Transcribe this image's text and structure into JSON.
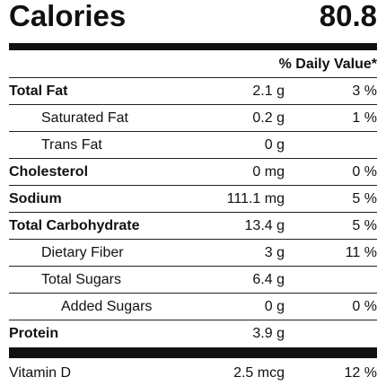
{
  "calories": {
    "label": "Calories",
    "value": "80.8"
  },
  "daily_value_header": "% Daily Value*",
  "nutrients": [
    {
      "name": "Total Fat",
      "amount": "2.1 g",
      "dv": "3 %"
    },
    {
      "name": "Saturated Fat",
      "amount": "0.2 g",
      "dv": "1 %"
    },
    {
      "name": "Trans Fat",
      "amount": "0 g",
      "dv": ""
    },
    {
      "name": "Cholesterol",
      "amount": "0 mg",
      "dv": "0 %"
    },
    {
      "name": "Sodium",
      "amount": "111.1 mg",
      "dv": "5 %"
    },
    {
      "name": "Total Carbohydrate",
      "amount": "13.4 g",
      "dv": "5 %"
    },
    {
      "name": "Dietary Fiber",
      "amount": "3 g",
      "dv": "11 %"
    },
    {
      "name": "Total Sugars",
      "amount": "6.4 g",
      "dv": ""
    },
    {
      "name": "Added Sugars",
      "amount": "0 g",
      "dv": "0 %"
    },
    {
      "name": "Protein",
      "amount": "3.9 g",
      "dv": ""
    }
  ],
  "vitamin_d": {
    "name": "Vitamin D",
    "amount": "2.5 mcg",
    "dv": "12 %"
  }
}
